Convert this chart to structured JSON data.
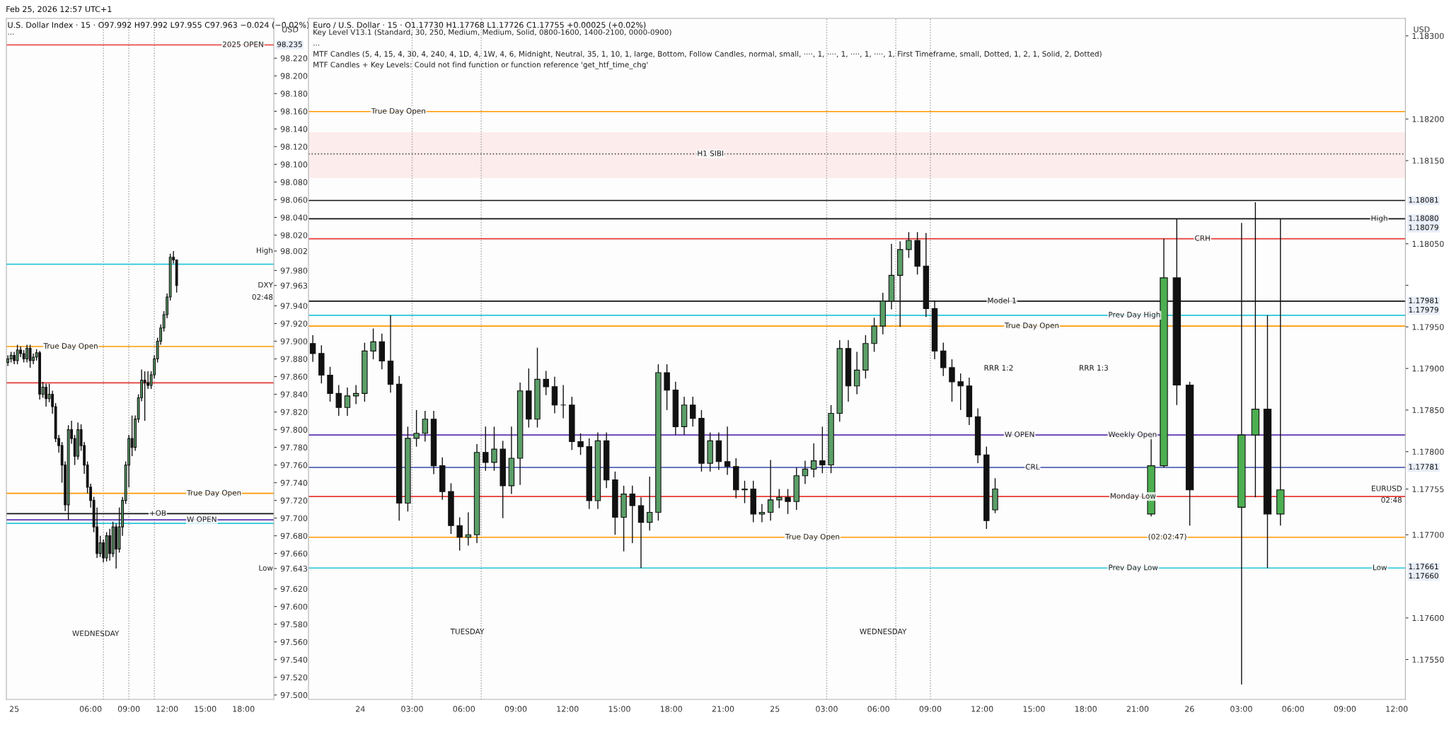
{
  "chart_data": [
    {
      "type": "candlestick",
      "subtitle": "Feb 25, 2026 12:57 UTC+1",
      "title": "U.S. Dollar Index · 15 · O97.992 H97.992 L97.955 C97.963 −0.024 (−0.02%)",
      "ylabel": "USD",
      "xlim": [
        "2026-02-24T23:23",
        "2026-02-25T20:23"
      ],
      "ylim": [
        97.495,
        98.265
      ],
      "xticks": [
        {
          "value": "2026-02-25",
          "label": "25"
        },
        {
          "value": "2026-02-25T06:00",
          "label": "06:00"
        },
        {
          "value": "2026-02-25T09:00",
          "label": "09:00"
        },
        {
          "value": "2026-02-25T12:00",
          "label": "12:00"
        },
        {
          "value": "2026-02-25T15:00",
          "label": "15:00"
        },
        {
          "value": "2026-02-25T18:00",
          "label": "18:00"
        }
      ],
      "yticks": [
        {
          "value": 97.5,
          "label": "97.500"
        },
        {
          "value": 97.52,
          "label": "97.520"
        },
        {
          "value": 97.54,
          "label": "97.540"
        },
        {
          "value": 97.56,
          "label": "97.560"
        },
        {
          "value": 97.58,
          "label": "97.580"
        },
        {
          "value": 97.6,
          "label": "97.600"
        },
        {
          "value": 97.62,
          "label": "97.620"
        },
        {
          "value": 97.643,
          "label": "97.643"
        },
        {
          "value": 97.66,
          "label": "97.660"
        },
        {
          "value": 97.68,
          "label": "97.680"
        },
        {
          "value": 97.7,
          "label": "97.700"
        },
        {
          "value": 97.72,
          "label": "97.720"
        },
        {
          "value": 97.74,
          "label": "97.740"
        },
        {
          "value": 97.76,
          "label": "97.760"
        },
        {
          "value": 97.78,
          "label": "97.780"
        },
        {
          "value": 97.8,
          "label": "97.800"
        },
        {
          "value": 97.82,
          "label": "97.820"
        },
        {
          "value": 97.84,
          "label": "97.840"
        },
        {
          "value": 97.86,
          "label": "97.860"
        },
        {
          "value": 97.88,
          "label": "97.880"
        },
        {
          "value": 97.9,
          "label": "97.900"
        },
        {
          "value": 97.92,
          "label": "97.920"
        },
        {
          "value": 97.94,
          "label": "97.940"
        },
        {
          "value": 97.963,
          "label": "97.963"
        },
        {
          "value": 97.98,
          "label": "97.980"
        },
        {
          "value": 98.002,
          "label": "98.002"
        },
        {
          "value": 98.02,
          "label": "98.020"
        },
        {
          "value": 98.04,
          "label": "98.040"
        },
        {
          "value": 98.06,
          "label": "98.060"
        },
        {
          "value": 98.08,
          "label": "98.080"
        },
        {
          "value": 98.1,
          "label": "98.100"
        },
        {
          "value": 98.12,
          "label": "98.120"
        },
        {
          "value": 98.14,
          "label": "98.140"
        },
        {
          "value": 98.16,
          "label": "98.160"
        },
        {
          "value": 98.18,
          "label": "98.180"
        },
        {
          "value": 98.2,
          "label": "98.200"
        },
        {
          "value": 98.22,
          "label": "98.220"
        }
      ],
      "series": [
        {
          "x": [
            "2026-02-24T23:30",
            "2026-02-24T23:45",
            "2026-02-25T00:00",
            "2026-02-25T00:15",
            "2026-02-25T00:30",
            "2026-02-25T00:45",
            "2026-02-25T01:00",
            "2026-02-25T01:15",
            "2026-02-25T01:30",
            "2026-02-25T01:45",
            "2026-02-25T02:00",
            "2026-02-25T02:15",
            "2026-02-25T02:30",
            "2026-02-25T02:45",
            "2026-02-25T03:00",
            "2026-02-25T03:15",
            "2026-02-25T03:30",
            "2026-02-25T03:45",
            "2026-02-25T04:00",
            "2026-02-25T04:15",
            "2026-02-25T04:30",
            "2026-02-25T04:45",
            "2026-02-25T05:00",
            "2026-02-25T05:15",
            "2026-02-25T05:30",
            "2026-02-25T05:45",
            "2026-02-25T06:00",
            "2026-02-25T06:15",
            "2026-02-25T06:30",
            "2026-02-25T06:45",
            "2026-02-25T07:00",
            "2026-02-25T07:15",
            "2026-02-25T07:30",
            "2026-02-25T07:45",
            "2026-02-25T08:00",
            "2026-02-25T08:15",
            "2026-02-25T08:30",
            "2026-02-25T08:45",
            "2026-02-25T09:00",
            "2026-02-25T09:15",
            "2026-02-25T09:30",
            "2026-02-25T09:45",
            "2026-02-25T10:00",
            "2026-02-25T10:15",
            "2026-02-25T10:30",
            "2026-02-25T10:45",
            "2026-02-25T11:00",
            "2026-02-25T11:15",
            "2026-02-25T11:30",
            "2026-02-25T11:45",
            "2026-02-25T12:00",
            "2026-02-25T12:15",
            "2026-02-25T12:30",
            "2026-02-25T12:45"
          ],
          "ohlc": [
            [
              97.876,
              97.884,
              97.872,
              97.88
            ],
            [
              97.88,
              97.888,
              97.876,
              97.884
            ],
            [
              97.884,
              97.888,
              97.874,
              97.878
            ],
            [
              97.878,
              97.896,
              97.874,
              97.89
            ],
            [
              97.89,
              97.894,
              97.882,
              97.886
            ],
            [
              97.886,
              97.89,
              97.876,
              97.88
            ],
            [
              97.88,
              97.896,
              97.876,
              97.892
            ],
            [
              97.892,
              97.896,
              97.87,
              97.878
            ],
            [
              97.878,
              97.886,
              97.874,
              97.882
            ],
            [
              97.882,
              97.891,
              97.878,
              97.887
            ],
            [
              97.887,
              97.889,
              97.834,
              97.84
            ],
            [
              97.84,
              97.854,
              97.836,
              97.848
            ],
            [
              97.848,
              97.852,
              97.826,
              97.835
            ],
            [
              97.835,
              97.852,
              97.831,
              97.84
            ],
            [
              97.84,
              97.844,
              97.818,
              97.826
            ],
            [
              97.826,
              97.83,
              97.786,
              97.79
            ],
            [
              97.79,
              97.794,
              97.774,
              97.782
            ],
            [
              97.782,
              97.786,
              97.74,
              97.76
            ],
            [
              97.76,
              97.764,
              97.708,
              97.715
            ],
            [
              97.715,
              97.805,
              97.698,
              97.8
            ],
            [
              97.8,
              97.81,
              97.784,
              97.79
            ],
            [
              97.79,
              97.794,
              97.76,
              97.77
            ],
            [
              97.77,
              97.808,
              97.766,
              97.8
            ],
            [
              97.8,
              97.806,
              97.776,
              97.782
            ],
            [
              97.782,
              97.786,
              97.75,
              97.76
            ],
            [
              97.76,
              97.764,
              97.728,
              97.735
            ],
            [
              97.735,
              97.739,
              97.712,
              97.72
            ],
            [
              97.72,
              97.724,
              97.684,
              97.69
            ],
            [
              97.69,
              97.712,
              97.655,
              97.66
            ],
            [
              97.66,
              97.68,
              97.656,
              97.672
            ],
            [
              97.672,
              97.676,
              97.65,
              97.655
            ],
            [
              97.655,
              97.684,
              97.651,
              97.68
            ],
            [
              97.68,
              97.688,
              97.652,
              97.66
            ],
            [
              97.66,
              97.696,
              97.656,
              97.69
            ],
            [
              97.69,
              97.694,
              97.643,
              97.665
            ],
            [
              97.665,
              97.712,
              97.661,
              97.69
            ],
            [
              97.69,
              97.724,
              97.68,
              97.72
            ],
            [
              97.72,
              97.764,
              97.716,
              97.76
            ],
            [
              97.76,
              97.794,
              97.735,
              97.79
            ],
            [
              97.79,
              97.816,
              97.77,
              97.78
            ],
            [
              97.78,
              97.816,
              97.776,
              97.812
            ],
            [
              97.812,
              97.84,
              97.808,
              97.836
            ],
            [
              97.836,
              97.868,
              97.832,
              97.856
            ],
            [
              97.856,
              97.866,
              97.81,
              97.853
            ],
            [
              97.853,
              97.866,
              97.846,
              97.85
            ],
            [
              97.85,
              97.866,
              97.846,
              97.862
            ],
            [
              97.862,
              97.884,
              97.858,
              97.88
            ],
            [
              97.88,
              97.904,
              97.876,
              97.9
            ],
            [
              97.9,
              97.919,
              97.896,
              97.915
            ],
            [
              97.915,
              97.934,
              97.911,
              97.93
            ],
            [
              97.93,
              97.954,
              97.926,
              97.95
            ],
            [
              97.95,
              97.999,
              97.946,
              97.995
            ],
            [
              97.995,
              98.002,
              97.988,
              97.992
            ],
            [
              97.992,
              97.992,
              97.955,
              97.963
            ]
          ],
          "colors": [
            "#5b9f68",
            "#5b9f68",
            "#111111",
            "#5b9f68",
            "#111111",
            "#111111",
            "#5b9f68",
            "#111111",
            "#5b9f68",
            "#5b9f68",
            "#111111",
            "#5b9f68",
            "#111111",
            "#5b9f68",
            "#111111",
            "#111111",
            "#111111",
            "#111111",
            "#111111",
            "#5b9f68",
            "#111111",
            "#111111",
            "#5b9f68",
            "#111111",
            "#111111",
            "#111111",
            "#111111",
            "#111111",
            "#111111",
            "#5b9f68",
            "#111111",
            "#5b9f68",
            "#111111",
            "#5b9f68",
            "#111111",
            "#5b9f68",
            "#5b9f68",
            "#5b9f68",
            "#5b9f68",
            "#111111",
            "#5b9f68",
            "#5b9f68",
            "#5b9f68",
            "#111111",
            "#111111",
            "#5b9f68",
            "#5b9f68",
            "#5b9f68",
            "#5b9f68",
            "#5b9f68",
            "#5b9f68",
            "#5b9f68",
            "#111111",
            "#111111"
          ]
        }
      ],
      "ref_lines": [
        {
          "axis": "y",
          "value": 98.235,
          "color": "#e53935"
        },
        {
          "axis": "y",
          "value": 97.987,
          "color": "#26c6da"
        },
        {
          "axis": "y",
          "value": 97.853,
          "color": "#e53935"
        },
        {
          "axis": "y",
          "value": 97.894,
          "color": "#ff9800"
        },
        {
          "axis": "y",
          "value": 97.728,
          "color": "#ff9800"
        },
        {
          "axis": "y",
          "value": 97.705,
          "color": "#111111"
        },
        {
          "axis": "y",
          "value": 97.698,
          "color": "#5e35b1"
        },
        {
          "axis": "y",
          "value": 97.694,
          "color": "#26c6da"
        },
        {
          "axis": "x",
          "value": "2026-02-25T07:00",
          "color": "#9e9e9e",
          "line_style": "dotted"
        },
        {
          "axis": "x",
          "value": "2026-02-25T09:00",
          "color": "#9e9e9e",
          "line_style": "dotted"
        },
        {
          "axis": "x",
          "value": "2026-02-25T11:00",
          "color": "#9e9e9e",
          "line_style": "dotted"
        }
      ],
      "annotations": [
        "...",
        "WEDNESDAY",
        "High",
        "DXY",
        "Low",
        "02:48",
        {
          "text": "2025 OPEN",
          "x": "2026-02-25T16:20",
          "y": 98.235
        },
        {
          "text": "True Day Open",
          "x": "2026-02-25T02:18",
          "y": 97.894
        },
        {
          "text": "True Day Open",
          "x": "2026-02-25T13:33",
          "y": 97.728
        },
        {
          "text": "+OB",
          "x": "2026-02-25T10:36",
          "y": 97.705
        },
        {
          "text": "W OPEN",
          "x": "2026-02-25T13:33",
          "y": 97.698
        },
        {
          "text": "98.235",
          "x": "2026-02-25T20:23",
          "y": 98.235
        }
      ]
    },
    {
      "type": "candlestick",
      "title": "Euro / U.S. Dollar · 15 · O1.17730 H1.17768 L1.17726 C1.17755 +0.00025 (+0.02%)",
      "ylabel": "USD",
      "xlim": [
        "2026-02-23T21:00",
        "2026-02-26T12:30"
      ],
      "ylim": [
        1.17502,
        1.18321
      ],
      "xticks": [
        {
          "value": "2026-02-24",
          "label": "24"
        },
        {
          "value": "2026-02-24T03:00",
          "label": "03:00"
        },
        {
          "value": "2026-02-24T06:00",
          "label": "06:00"
        },
        {
          "value": "2026-02-24T09:00",
          "label": "09:00"
        },
        {
          "value": "2026-02-24T12:00",
          "label": "12:00"
        },
        {
          "value": "2026-02-24T15:00",
          "label": "15:00"
        },
        {
          "value": "2026-02-24T18:00",
          "label": "18:00"
        },
        {
          "value": "2026-02-24T21:00",
          "label": "21:00"
        },
        {
          "value": "2026-02-25",
          "label": "25"
        },
        {
          "value": "2026-02-25T03:00",
          "label": "03:00"
        },
        {
          "value": "2026-02-25T06:00",
          "label": "06:00"
        },
        {
          "value": "2026-02-25T09:00",
          "label": "09:00"
        },
        {
          "value": "2026-02-25T12:00",
          "label": "12:00"
        },
        {
          "value": "2026-02-25T15:00",
          "label": "15:00"
        },
        {
          "value": "2026-02-25T18:00",
          "label": "18:00"
        },
        {
          "value": "2026-02-25T21:00",
          "label": "21:00"
        },
        {
          "value": "2026-02-26",
          "label": "26"
        },
        {
          "value": "2026-02-26T03:00",
          "label": "03:00"
        },
        {
          "value": "2026-02-26T06:00",
          "label": "06:00"
        },
        {
          "value": "2026-02-26T09:00",
          "label": "09:00"
        },
        {
          "value": "2026-02-26T12:00",
          "label": "12:00"
        }
      ],
      "yticks": [
        {
          "value": 1.1755,
          "label": "1.17550"
        },
        {
          "value": 1.176,
          "label": "1.17600"
        },
        {
          "value": 1.177,
          "label": "1.17700"
        },
        {
          "value": 1.17755,
          "label": "1.17755"
        },
        {
          "value": 1.178,
          "label": "1.17800"
        },
        {
          "value": 1.1785,
          "label": "1.17850"
        },
        {
          "value": 1.179,
          "label": "1.17900"
        },
        {
          "value": 1.1795,
          "label": "1.17950"
        },
        {
          "value": 1.18,
          "label": null
        },
        {
          "value": 1.1805,
          "label": "1.18050"
        },
        {
          "value": 1.1815,
          "label": "1.18150"
        },
        {
          "value": 1.182,
          "label": "1.18200"
        },
        {
          "value": 1.183,
          "label": "1.18300"
        }
      ],
      "series": [
        {
          "x": [
            "2026-02-23T21:15",
            "2026-02-23T21:45",
            "2026-02-23T22:15",
            "2026-02-23T22:45",
            "2026-02-23T23:15",
            "2026-02-23T23:45",
            "2026-02-24T00:15",
            "2026-02-24T00:45",
            "2026-02-24T01:15",
            "2026-02-24T01:45",
            "2026-02-24T02:15",
            "2026-02-24T02:45",
            "2026-02-24T03:15",
            "2026-02-24T03:45",
            "2026-02-24T04:15",
            "2026-02-24T04:45",
            "2026-02-24T05:15",
            "2026-02-24T05:45",
            "2026-02-24T06:15",
            "2026-02-24T06:45",
            "2026-02-24T07:15",
            "2026-02-24T07:45",
            "2026-02-24T08:15",
            "2026-02-24T08:45",
            "2026-02-24T09:15",
            "2026-02-24T09:45",
            "2026-02-24T10:15",
            "2026-02-24T10:45",
            "2026-02-24T11:15",
            "2026-02-24T11:45",
            "2026-02-24T12:15",
            "2026-02-24T12:45",
            "2026-02-24T13:15",
            "2026-02-24T13:45",
            "2026-02-24T14:15",
            "2026-02-24T14:45",
            "2026-02-24T15:15",
            "2026-02-24T15:45",
            "2026-02-24T16:15",
            "2026-02-24T16:45",
            "2026-02-24T17:15",
            "2026-02-24T17:45",
            "2026-02-24T18:15",
            "2026-02-24T18:45",
            "2026-02-24T19:15",
            "2026-02-24T19:45",
            "2026-02-24T20:15",
            "2026-02-24T20:45",
            "2026-02-24T21:15",
            "2026-02-24T21:45",
            "2026-02-24T22:15",
            "2026-02-24T22:45",
            "2026-02-24T23:15",
            "2026-02-24T23:45",
            "2026-02-25T00:15",
            "2026-02-25T00:45",
            "2026-02-25T01:15",
            "2026-02-25T01:45",
            "2026-02-25T02:15",
            "2026-02-25T02:45",
            "2026-02-25T03:15",
            "2026-02-25T03:45",
            "2026-02-25T04:15",
            "2026-02-25T04:45",
            "2026-02-25T05:15",
            "2026-02-25T05:45",
            "2026-02-25T06:15",
            "2026-02-25T06:45",
            "2026-02-25T07:15",
            "2026-02-25T07:45",
            "2026-02-25T08:15",
            "2026-02-25T08:45",
            "2026-02-25T09:15",
            "2026-02-25T09:45",
            "2026-02-25T10:15",
            "2026-02-25T10:45",
            "2026-02-25T11:15",
            "2026-02-25T11:45",
            "2026-02-25T12:15",
            "2026-02-25T12:45"
          ],
          "ohlc": [
            [
              1.1793,
              1.1794,
              1.17908,
              1.17918
            ],
            [
              1.17918,
              1.17928,
              1.17882,
              1.17892
            ],
            [
              1.17892,
              1.17902,
              1.1786,
              1.1787
            ],
            [
              1.1787,
              1.1788,
              1.17843,
              1.17853
            ],
            [
              1.17853,
              1.17877,
              1.17843,
              1.17867
            ],
            [
              1.17867,
              1.1788,
              1.17857,
              1.1787
            ],
            [
              1.1787,
              1.17931,
              1.1786,
              1.17921
            ],
            [
              1.17921,
              1.17948,
              1.17911,
              1.17932
            ],
            [
              1.17932,
              1.17942,
              1.17899,
              1.17909
            ],
            [
              1.17909,
              1.17964,
              1.17871,
              1.17881
            ],
            [
              1.17881,
              1.17891,
              1.17717,
              1.17738
            ],
            [
              1.17738,
              1.1783,
              1.17728,
              1.17816
            ],
            [
              1.17816,
              1.1785,
              1.17806,
              1.17822
            ],
            [
              1.17822,
              1.17849,
              1.17812,
              1.17839
            ],
            [
              1.17839,
              1.17849,
              1.17773,
              1.17783
            ],
            [
              1.17783,
              1.17793,
              1.17742,
              1.17752
            ],
            [
              1.17752,
              1.17762,
              1.17701,
              1.17711
            ],
            [
              1.17711,
              1.17721,
              1.17681,
              1.17697
            ],
            [
              1.17697,
              1.17727,
              1.17687,
              1.177
            ],
            [
              1.177,
              1.17809,
              1.1769,
              1.17799
            ],
            [
              1.17799,
              1.1783,
              1.17777,
              1.17787
            ],
            [
              1.17787,
              1.1783,
              1.17777,
              1.17803
            ],
            [
              1.17803,
              1.17813,
              1.1772,
              1.17759
            ],
            [
              1.17759,
              1.1783,
              1.17749,
              1.17792
            ],
            [
              1.17792,
              1.17883,
              1.1776,
              1.17873
            ],
            [
              1.17873,
              1.179,
              1.17829,
              1.17839
            ],
            [
              1.17839,
              1.17925,
              1.17829,
              1.17887
            ],
            [
              1.17887,
              1.17897,
              1.17868,
              1.17878
            ],
            [
              1.17878,
              1.1789,
              1.17846,
              1.17856
            ],
            [
              1.17856,
              1.1788,
              1.1784,
              1.17856
            ],
            [
              1.17856,
              1.17866,
              1.17802,
              1.17812
            ],
            [
              1.17812,
              1.17822,
              1.17796,
              1.17806
            ],
            [
              1.17806,
              1.17816,
              1.17731,
              1.17741
            ],
            [
              1.17741,
              1.17823,
              1.17731,
              1.17813
            ],
            [
              1.17813,
              1.17823,
              1.17756,
              1.17766
            ],
            [
              1.17766,
              1.17776,
              1.177,
              1.17721
            ],
            [
              1.17721,
              1.17759,
              1.1768,
              1.17749
            ],
            [
              1.17749,
              1.17759,
              1.1769,
              1.17735
            ],
            [
              1.17735,
              1.17745,
              1.1766,
              1.17715
            ],
            [
              1.17715,
              1.1777,
              1.17705,
              1.17727
            ],
            [
              1.17727,
              1.17905,
              1.17717,
              1.17895
            ],
            [
              1.17895,
              1.17905,
              1.1785,
              1.17874
            ],
            [
              1.17874,
              1.17884,
              1.1782,
              1.1783
            ],
            [
              1.1783,
              1.17866,
              1.1782,
              1.17856
            ],
            [
              1.17856,
              1.17866,
              1.1783,
              1.1784
            ],
            [
              1.1784,
              1.1785,
              1.17776,
              1.17786
            ],
            [
              1.17786,
              1.17823,
              1.17776,
              1.17813
            ],
            [
              1.17813,
              1.17823,
              1.17778,
              1.17788
            ],
            [
              1.17788,
              1.1783,
              1.17772,
              1.17782
            ],
            [
              1.17782,
              1.17792,
              1.17744,
              1.17754
            ],
            [
              1.17754,
              1.17765,
              1.17738,
              1.17755
            ],
            [
              1.17755,
              1.17765,
              1.17715,
              1.17725
            ],
            [
              1.17725,
              1.17737,
              1.17715,
              1.17727
            ],
            [
              1.17727,
              1.1779,
              1.17717,
              1.17742
            ],
            [
              1.17742,
              1.17755,
              1.17732,
              1.17745
            ],
            [
              1.17745,
              1.17755,
              1.17725,
              1.1774
            ],
            [
              1.1774,
              1.17781,
              1.1773,
              1.17771
            ],
            [
              1.17771,
              1.17789,
              1.17761,
              1.17779
            ],
            [
              1.17779,
              1.1781,
              1.17769,
              1.17789
            ],
            [
              1.17789,
              1.1783,
              1.17774,
              1.17784
            ],
            [
              1.17784,
              1.17856,
              1.17774,
              1.17846
            ],
            [
              1.17846,
              1.17934,
              1.17836,
              1.17924
            ],
            [
              1.17924,
              1.17934,
              1.1786,
              1.17879
            ],
            [
              1.17879,
              1.1792,
              1.17869,
              1.17898
            ],
            [
              1.17898,
              1.1794,
              1.17888,
              1.1793
            ],
            [
              1.1793,
              1.17961,
              1.1792,
              1.17951
            ],
            [
              1.17951,
              1.17991,
              1.17941,
              1.17981
            ],
            [
              1.17981,
              1.1805,
              1.17971,
              1.18012
            ],
            [
              1.18012,
              1.18053,
              1.1795,
              1.18043
            ],
            [
              1.18043,
              1.18064,
              1.18033,
              1.18054
            ],
            [
              1.18054,
              1.18064,
              1.18013,
              1.18023
            ],
            [
              1.18023,
              1.18063,
              1.17962,
              1.17972
            ],
            [
              1.17972,
              1.17982,
              1.17911,
              1.17921
            ],
            [
              1.17921,
              1.17931,
              1.17891,
              1.17901
            ],
            [
              1.17901,
              1.17911,
              1.1786,
              1.17884
            ],
            [
              1.17884,
              1.17894,
              1.1785,
              1.17879
            ],
            [
              1.17879,
              1.17889,
              1.17832,
              1.17842
            ],
            [
              1.17842,
              1.17852,
              1.17786,
              1.17796
            ],
            [
              1.17796,
              1.17806,
              1.17707,
              1.17717
            ],
            [
              1.1773,
              1.17768,
              1.17726,
              1.17755
            ]
          ],
          "colors": [
            "#111111",
            "#111111",
            "#111111",
            "#111111",
            "#5b9f68",
            "#5b9f68",
            "#5b9f68",
            "#5b9f68",
            "#111111",
            "#111111",
            "#111111",
            "#5b9f68",
            "#5b9f68",
            "#5b9f68",
            "#111111",
            "#111111",
            "#111111",
            "#111111",
            "#5b9f68",
            "#5b9f68",
            "#111111",
            "#5b9f68",
            "#111111",
            "#5b9f68",
            "#5b9f68",
            "#111111",
            "#5b9f68",
            "#111111",
            "#111111",
            "#111111",
            "#111111",
            "#111111",
            "#111111",
            "#5b9f68",
            "#111111",
            "#111111",
            "#5b9f68",
            "#111111",
            "#111111",
            "#5b9f68",
            "#5b9f68",
            "#111111",
            "#111111",
            "#5b9f68",
            "#111111",
            "#111111",
            "#5b9f68",
            "#111111",
            "#111111",
            "#111111",
            "#5b9f68",
            "#111111",
            "#5b9f68",
            "#5b9f68",
            "#5b9f68",
            "#111111",
            "#5b9f68",
            "#5b9f68",
            "#5b9f68",
            "#111111",
            "#5b9f68",
            "#5b9f68",
            "#111111",
            "#5b9f68",
            "#5b9f68",
            "#5b9f68",
            "#5b9f68",
            "#5b9f68",
            "#5b9f68",
            "#5b9f68",
            "#111111",
            "#111111",
            "#111111",
            "#111111",
            "#111111",
            "#111111",
            "#111111",
            "#111111",
            "#111111",
            "#5b9f68"
          ]
        },
        {
          "x": [
            "2026-02-25T21:47",
            "2026-02-25T22:31",
            "2026-02-25T23:16",
            "2026-02-26T00:01",
            "2026-02-26T03:01",
            "2026-02-26T03:49",
            "2026-02-26T04:31",
            "2026-02-26T05:16"
          ],
          "ohlc": [
            [
              1.17725,
              1.17821,
              1.17722,
              1.17783
            ],
            [
              1.17783,
              1.18056,
              1.17781,
              1.18009
            ],
            [
              1.18009,
              1.1808,
              1.17856,
              1.1788
            ],
            [
              1.1788,
              1.17884,
              1.17711,
              1.17754
            ],
            [
              1.17733,
              1.18075,
              1.1752,
              1.1782
            ],
            [
              1.1782,
              1.181,
              1.17745,
              1.17851
            ],
            [
              1.17851,
              1.17964,
              1.1766,
              1.17725
            ],
            [
              1.17725,
              1.1808,
              1.17711,
              1.17754
            ]
          ],
          "colors": [
            "#4caf50",
            "#4caf50",
            "#111111",
            "#111111",
            "#4caf50",
            "#4caf50",
            "#111111",
            "#4caf50"
          ]
        }
      ],
      "bands": [
        {
          "axis": "y",
          "from": 1.18129,
          "to": 1.18184,
          "color": "#fdecec"
        }
      ],
      "ref_lines": [
        {
          "axis": "y",
          "value": 1.17964,
          "color": "#26c6da"
        },
        {
          "axis": "y",
          "value": 1.1766,
          "color": "#26c6da"
        },
        {
          "axis": "y",
          "value": 1.1782,
          "color": "#5e35b1"
        },
        {
          "axis": "y",
          "value": 1.17746,
          "color": "#e53935"
        },
        {
          "axis": "y",
          "value": 1.17697,
          "color": "#ff9800"
        },
        {
          "axis": "y",
          "value": 1.18209,
          "color": "#ff9800"
        },
        {
          "axis": "y",
          "value": 1.17951,
          "color": "#ff9800"
        },
        {
          "axis": "y",
          "value": 1.17781,
          "color": "#3949ab"
        },
        {
          "axis": "y",
          "value": 1.18056,
          "color": "#e53935"
        },
        {
          "axis": "y",
          "value": 1.18102,
          "color": "#111111"
        },
        {
          "axis": "y",
          "value": 1.17981,
          "color": "#111111"
        },
        {
          "axis": "y",
          "value": 1.18158,
          "color": "#555555",
          "line_style": "dotted"
        },
        {
          "axis": "y",
          "value": 1.1808,
          "color": "#111111"
        },
        {
          "axis": "x",
          "value": "2026-02-24T03:00",
          "color": "#9e9e9e",
          "line_style": "dotted"
        },
        {
          "axis": "x",
          "value": "2026-02-24T07:00",
          "color": "#9e9e9e",
          "line_style": "dotted"
        },
        {
          "axis": "x",
          "value": "2026-02-25T03:00",
          "color": "#9e9e9e",
          "line_style": "dotted"
        },
        {
          "axis": "x",
          "value": "2026-02-25T07:00",
          "color": "#9e9e9e",
          "line_style": "dotted"
        },
        {
          "axis": "x",
          "value": "2026-02-25T09:00",
          "color": "#9e9e9e",
          "line_style": "dotted"
        }
      ],
      "annotations": [
        "Key Level V13.1 (Standard, 30, 250, Medium, Medium, Solid, 0800-1600, 1400-2100, 0000-0900)",
        "...",
        "MTF Candles (5, 4, 15, 4, 30, 4, 240, 4, 1D, 4, 1W, 4, 6, Midnight, Neutral, 35, 1, 10, 1, large, Bottom, Follow Candles, normal, small, ····, 1, ····, 1, ····, 1, ····, 1, First Timeframe, small, Dotted, 1, 2, 1, Solid, 2, Dotted)",
        "MTF Candles + Key Levels: Could not find function or function reference 'get_htf_time_chg'",
        "TUESDAY",
        "WEDNESDAY",
        "RRR 1:2",
        "RRR 1:3",
        "EURUSD",
        "02:48",
        {
          "text": "True Day Open",
          "x": "2026-02-24T00:38",
          "y": 1.18209
        },
        {
          "text": "H1 SIBI",
          "x": "2026-02-24T19:30",
          "y": 1.18158
        },
        {
          "text": "Model 1",
          "x": "2026-02-25T12:18",
          "y": 1.17981
        },
        {
          "text": "True Day Open",
          "x": "2026-02-25T13:18",
          "y": 1.17951
        },
        {
          "text": "Prev Day High",
          "x": "2026-02-25T19:18",
          "y": 1.17964
        },
        {
          "text": "W OPEN",
          "x": "2026-02-25T13:18",
          "y": 1.1782
        },
        {
          "text": "Weekly Open",
          "x": "2026-02-25T19:18",
          "y": 1.1782
        },
        {
          "text": "CRL",
          "x": "2026-02-25T14:30",
          "y": 1.17781
        },
        {
          "text": "CRH",
          "x": "2026-02-26T00:18",
          "y": 1.18056
        },
        {
          "text": "Monday Low",
          "x": "2026-02-25T19:24",
          "y": 1.17746
        },
        {
          "text": "(02:02:47)",
          "x": "2026-02-25T21:36",
          "y": 1.17697
        },
        {
          "text": "Prev Day Low",
          "x": "2026-02-25T19:18",
          "y": 1.1766
        },
        {
          "text": "True Day Open",
          "x": "2026-02-25T00:36",
          "y": 1.17697
        },
        {
          "text": "High",
          "x": "2026-02-26T10:30",
          "y": 1.1808
        },
        {
          "text": "Low",
          "x": "2026-02-26T10:36",
          "y": 1.1766
        },
        {
          "text": "1.18081",
          "x": "2026-02-26T12:30",
          "y": 1.18102
        },
        {
          "text": "1.18080",
          "x": "2026-02-26T12:30",
          "y": 1.1808
        },
        {
          "text": "1.18079",
          "x": "2026-02-26T12:30",
          "y": 1.18079
        },
        {
          "text": "1.17981",
          "x": "2026-02-26T12:30",
          "y": 1.17981
        },
        {
          "text": "1.17979",
          "x": "2026-02-26T12:30",
          "y": 1.17979
        },
        {
          "text": "1.17781",
          "x": "2026-02-26T12:30",
          "y": 1.17781
        },
        {
          "text": "1.17661",
          "x": "2026-02-26T12:30",
          "y": 1.17661
        },
        {
          "text": "1.17660",
          "x": "2026-02-26T12:30",
          "y": 1.1766
        }
      ]
    }
  ]
}
